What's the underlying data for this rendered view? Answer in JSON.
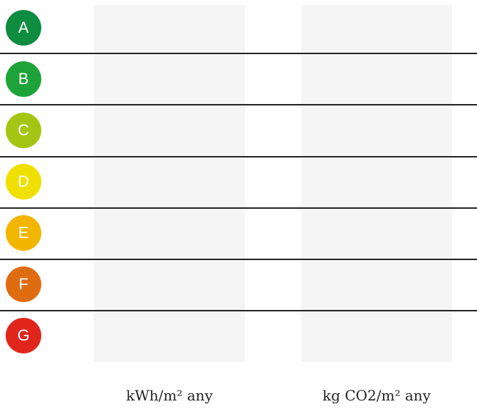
{
  "ratings": [
    {
      "letter": "A",
      "color": "#0e8c3f"
    },
    {
      "letter": "B",
      "color": "#1ea33a"
    },
    {
      "letter": "C",
      "color": "#a6c414"
    },
    {
      "letter": "D",
      "color": "#f0e000"
    },
    {
      "letter": "E",
      "color": "#f2b600"
    },
    {
      "letter": "F",
      "color": "#e06c12"
    },
    {
      "letter": "G",
      "color": "#e0261c"
    }
  ],
  "columns": {
    "energy_unit": "kWh/m² any",
    "co2_unit": "kg CO2/m² any"
  }
}
